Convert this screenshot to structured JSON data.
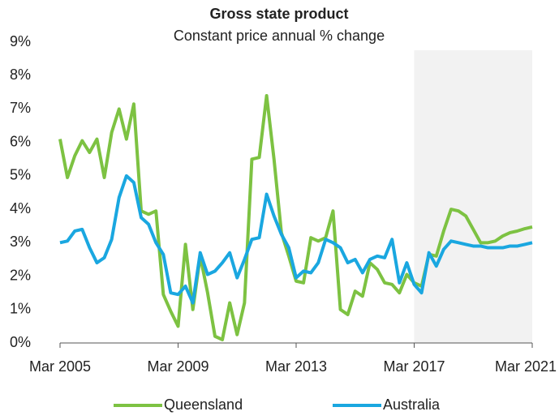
{
  "chart_data": {
    "type": "line",
    "title": "Gross state product",
    "subtitle": "Constant price annual % change",
    "x": [
      "Mar 2005",
      "Jun 2005",
      "Sep 2005",
      "Dec 2005",
      "Mar 2006",
      "Jun 2006",
      "Sep 2006",
      "Dec 2006",
      "Mar 2007",
      "Jun 2007",
      "Sep 2007",
      "Dec 2007",
      "Mar 2008",
      "Jun 2008",
      "Sep 2008",
      "Dec 2008",
      "Mar 2009",
      "Jun 2009",
      "Sep 2009",
      "Dec 2009",
      "Mar 2010",
      "Jun 2010",
      "Sep 2010",
      "Dec 2010",
      "Mar 2011",
      "Jun 2011",
      "Sep 2011",
      "Dec 2011",
      "Mar 2012",
      "Jun 2012",
      "Sep 2012",
      "Dec 2012",
      "Mar 2013",
      "Jun 2013",
      "Sep 2013",
      "Dec 2013",
      "Mar 2014",
      "Jun 2014",
      "Sep 2014",
      "Dec 2014",
      "Mar 2015",
      "Jun 2015",
      "Sep 2015",
      "Dec 2015",
      "Mar 2016",
      "Jun 2016",
      "Sep 2016",
      "Dec 2016",
      "Mar 2017",
      "Jun 2017",
      "Sep 2017",
      "Dec 2017",
      "Mar 2018",
      "Jun 2018",
      "Sep 2018",
      "Dec 2018",
      "Mar 2019",
      "Jun 2019",
      "Sep 2019",
      "Dec 2019",
      "Mar 2020",
      "Jun 2020",
      "Sep 2020",
      "Dec 2020",
      "Mar 2021"
    ],
    "series": [
      {
        "name": "Queensland",
        "color": "#7dc242",
        "values": [
          6.1,
          4.95,
          5.6,
          6.05,
          5.7,
          6.1,
          4.95,
          6.3,
          7.0,
          6.1,
          7.15,
          3.95,
          3.85,
          3.95,
          1.45,
          0.95,
          0.5,
          2.95,
          1.0,
          2.6,
          1.5,
          0.2,
          0.1,
          1.2,
          0.25,
          1.2,
          5.5,
          5.55,
          7.4,
          5.5,
          3.3,
          2.6,
          1.85,
          1.8,
          3.15,
          3.05,
          3.15,
          3.95,
          1.0,
          0.85,
          1.55,
          1.4,
          2.4,
          2.2,
          1.8,
          1.75,
          1.5,
          2.05,
          1.8,
          1.7,
          2.65,
          2.6,
          3.35,
          4.0,
          3.95,
          3.8,
          3.4,
          3.0,
          3.0,
          3.05,
          3.2,
          3.3,
          3.35,
          3.42,
          3.47
        ]
      },
      {
        "name": "Australia",
        "color": "#1aa7e0",
        "values": [
          3.0,
          3.05,
          3.35,
          3.4,
          2.85,
          2.4,
          2.55,
          3.1,
          4.35,
          5.0,
          4.8,
          3.75,
          3.55,
          3.0,
          2.65,
          1.5,
          1.45,
          1.7,
          1.2,
          2.7,
          2.05,
          2.15,
          2.4,
          2.7,
          1.95,
          2.5,
          3.1,
          3.15,
          4.45,
          3.8,
          3.25,
          2.85,
          1.95,
          2.15,
          2.1,
          2.4,
          3.1,
          3.0,
          2.85,
          2.4,
          2.5,
          2.1,
          2.5,
          2.6,
          2.55,
          3.1,
          1.8,
          2.4,
          1.75,
          1.5,
          2.7,
          2.3,
          2.8,
          3.05,
          3.0,
          2.95,
          2.9,
          2.9,
          2.85,
          2.85,
          2.85,
          2.9,
          2.9,
          2.95,
          3.0
        ]
      }
    ],
    "xticks": [
      "Mar 2005",
      "Mar 2009",
      "Mar 2013",
      "Mar 2017",
      "Mar 2021"
    ],
    "ylim": [
      0,
      9
    ],
    "yticks": [
      {
        "value": 0,
        "label": "0%"
      },
      {
        "value": 1,
        "label": "1%"
      },
      {
        "value": 2,
        "label": "2%"
      },
      {
        "value": 3,
        "label": "3%"
      },
      {
        "value": 4,
        "label": "4%"
      },
      {
        "value": 5,
        "label": "5%"
      },
      {
        "value": 6,
        "label": "6%"
      },
      {
        "value": 7,
        "label": "7%"
      },
      {
        "value": 8,
        "label": "8%"
      },
      {
        "value": 9,
        "label": "9%"
      }
    ],
    "shaded_from": "Mar 2017",
    "shade_color": "#f2f2f2",
    "legend": "bottom"
  }
}
